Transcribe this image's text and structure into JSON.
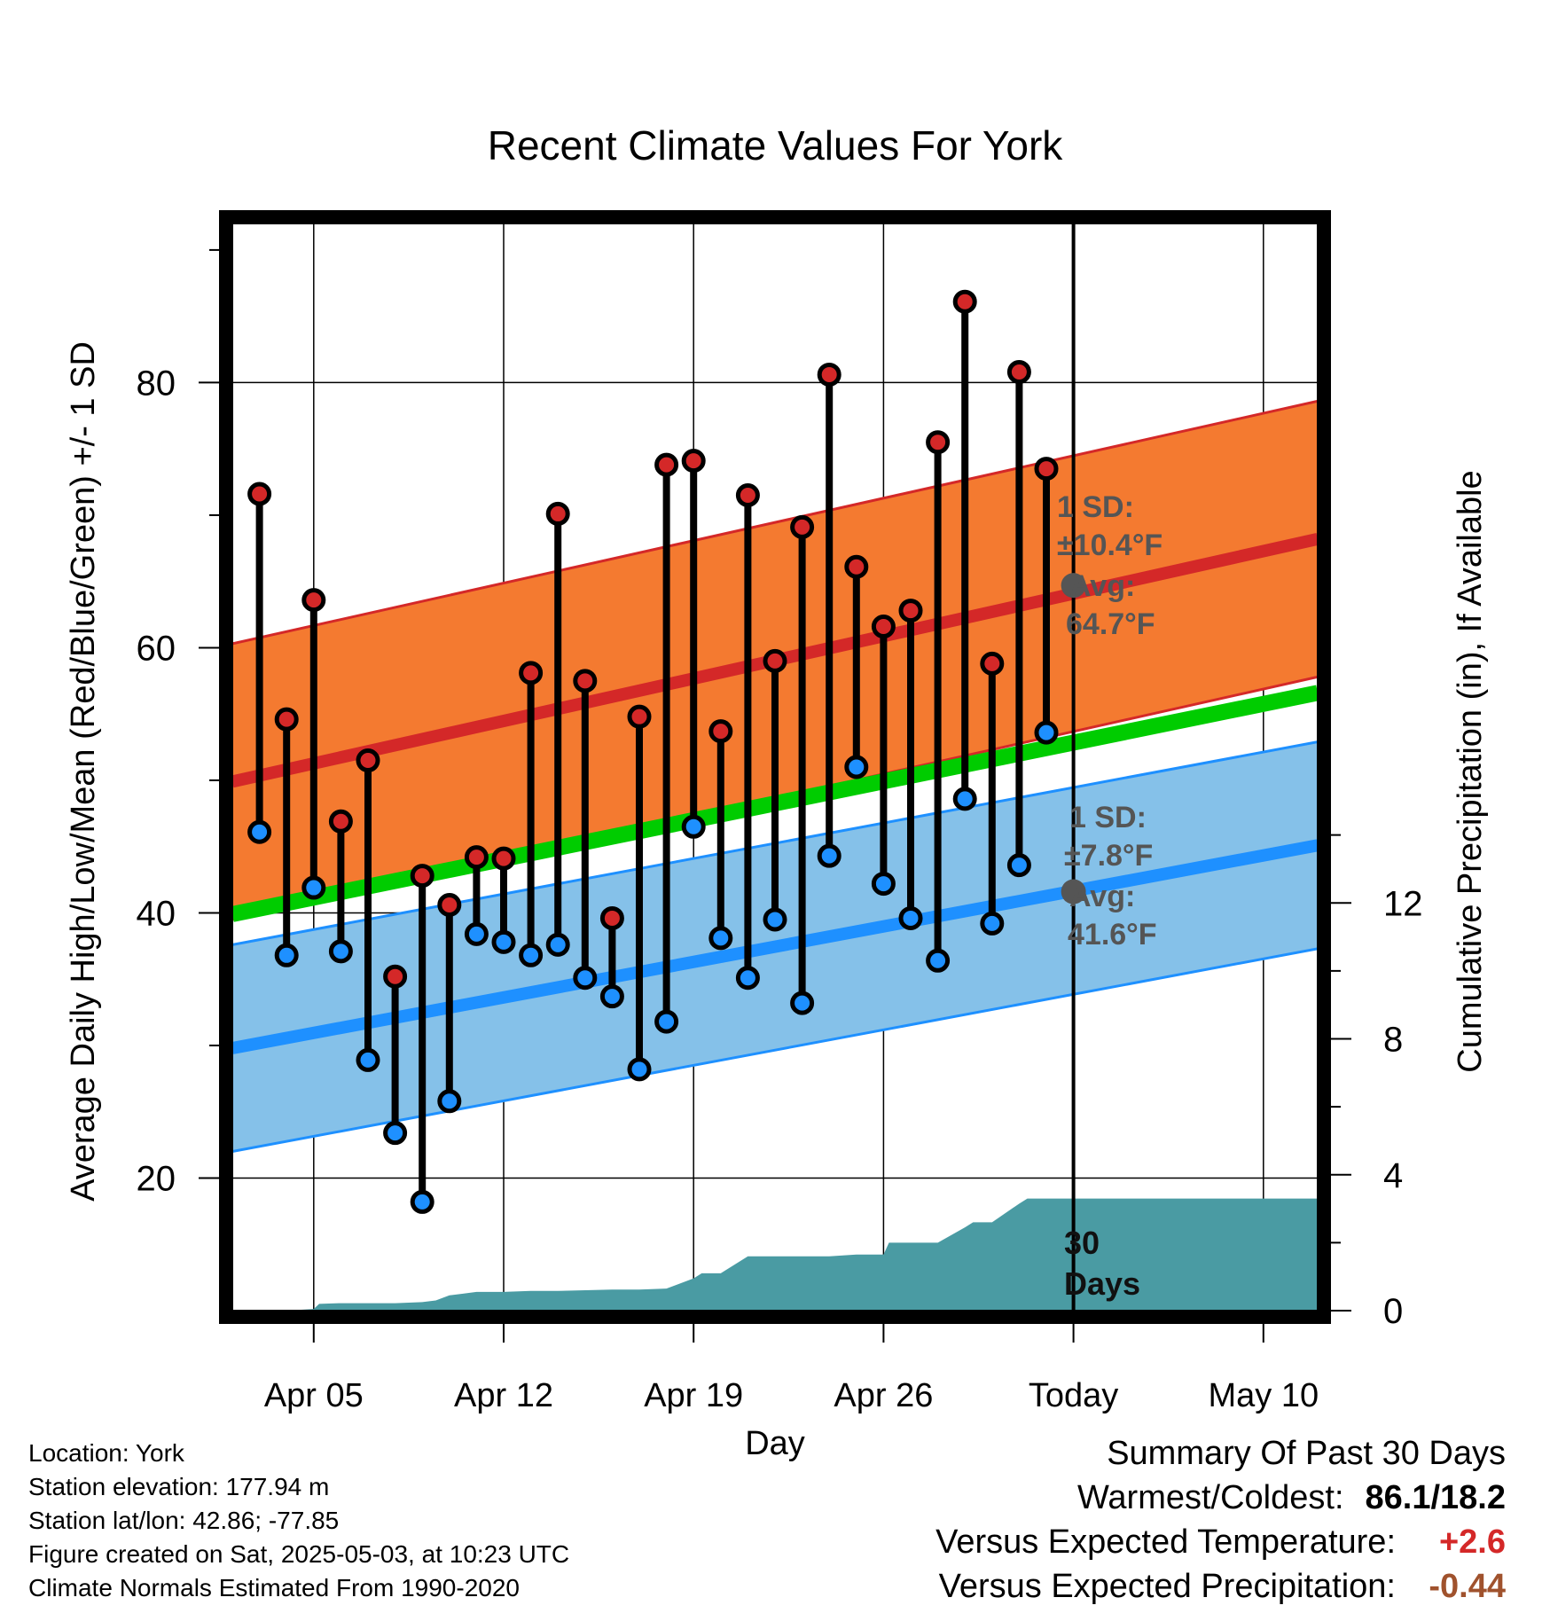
{
  "chart_data": {
    "type": "line",
    "title": "Recent Climate Values For York",
    "xlabel": "Day",
    "ylabel": "Average Daily High/Low/Mean (Red/Blue/Green) +/- 1 SD",
    "y2label": "Cumulative Precipitation (in), If Available",
    "ylim": [
      10,
      92
    ],
    "y2lim": [
      0,
      32
    ],
    "x_ticks": [
      {
        "day": 5,
        "label": "Apr 05"
      },
      {
        "day": 12,
        "label": "Apr 12"
      },
      {
        "day": 19,
        "label": "Apr 19"
      },
      {
        "day": 26,
        "label": "Apr 26"
      },
      {
        "day": 33,
        "label": "Today"
      },
      {
        "day": 40,
        "label": "May 10"
      }
    ],
    "xlim": [
      2,
      42
    ],
    "y_ticks": [
      "20",
      "40",
      "60",
      "80"
    ],
    "y_tick_values": [
      20,
      40,
      60,
      80
    ],
    "y2_ticks": [
      "0",
      "4",
      "8",
      "12"
    ],
    "y2_tick_values": [
      0,
      4,
      8,
      12
    ],
    "today_day": 33,
    "daily": {
      "day": [
        3,
        4,
        5,
        6,
        7,
        8,
        9,
        10,
        11,
        12,
        13,
        14,
        15,
        16,
        17,
        18,
        19,
        20,
        21,
        22,
        23,
        24,
        25,
        26,
        27,
        28,
        29,
        30,
        31,
        32
      ],
      "high": [
        71.6,
        54.6,
        63.6,
        46.9,
        51.5,
        35.2,
        42.8,
        40.6,
        44.2,
        44.1,
        58.1,
        70.1,
        57.5,
        39.6,
        54.8,
        73.8,
        74.1,
        53.7,
        71.5,
        59.0,
        69.1,
        80.6,
        66.1,
        61.6,
        62.8,
        75.5,
        86.1,
        58.8,
        80.8,
        73.5
      ],
      "low": [
        46.1,
        36.8,
        41.9,
        37.1,
        28.9,
        23.4,
        18.2,
        25.8,
        38.4,
        37.8,
        36.8,
        37.6,
        35.1,
        33.7,
        28.2,
        31.8,
        46.5,
        38.1,
        35.1,
        39.5,
        33.2,
        44.3,
        51.0,
        42.2,
        39.6,
        36.4,
        48.6,
        39.2,
        43.6,
        53.6
      ]
    },
    "normals": {
      "start_day": 2,
      "end_day": 42,
      "high_avg": [
        49.9,
        68.2
      ],
      "high_sd": 10.4,
      "low_avg": [
        29.8,
        45.1
      ],
      "low_sd": 7.8,
      "mean_avg": [
        39.9,
        56.6
      ]
    },
    "annotations": {
      "high_sd_label": "1 SD:",
      "high_sd_value": "±10.4°F",
      "high_avg_label": "Avg:",
      "high_avg_value": "64.7°F",
      "high_avg": 64.7,
      "low_sd_label": "1 SD:",
      "low_sd_value": "±7.8°F",
      "low_avg_label": "Avg:",
      "low_avg_value": "41.6°F",
      "low_avg": 41.6,
      "precip_period": "30",
      "precip_period_unit": "Days"
    },
    "precip": {
      "day": [
        4,
        5,
        5.2,
        6,
        8,
        9,
        9.5,
        10,
        10.5,
        11,
        12,
        13,
        14,
        16,
        17,
        18,
        19,
        19.3,
        20,
        21,
        22,
        23,
        24,
        25,
        26,
        26.2,
        27,
        28,
        29,
        29.3,
        30,
        31,
        31.3,
        32,
        33,
        42
      ],
      "cum": [
        0.0,
        0.05,
        0.2,
        0.22,
        0.22,
        0.25,
        0.3,
        0.45,
        0.5,
        0.55,
        0.55,
        0.58,
        0.58,
        0.62,
        0.62,
        0.65,
        0.95,
        1.1,
        1.1,
        1.6,
        1.6,
        1.6,
        1.6,
        1.65,
        1.65,
        2.0,
        2.0,
        2.0,
        2.45,
        2.6,
        2.6,
        3.15,
        3.3,
        3.3,
        3.3,
        3.3
      ]
    },
    "colors": {
      "high_band": "#f47a30",
      "high_line": "#d42828",
      "low_band": "#85c1e9",
      "low_line": "#1e90ff",
      "mean_line": "#00cc00",
      "precip": "#4a9ba3",
      "high_dot": "#d42828",
      "low_dot": "#1e90ff",
      "annotation": "#555555"
    }
  },
  "footer": {
    "location": "Location: York",
    "elevation": "Station elevation: 177.94 m",
    "latlon": "Station lat/lon: 42.86; -77.85",
    "created": "Figure created on Sat, 2025-05-03, at 10:23 UTC",
    "normals": "Climate Normals Estimated From 1990-2020"
  },
  "summary": {
    "title": "Summary Of Past 30 Days",
    "warm_cold_label": "Warmest/Coldest:",
    "warm_cold_value": "86.1/18.2",
    "temp_label": "Versus Expected Temperature:",
    "temp_value": "+2.6",
    "temp_color": "#d42828",
    "precip_label": "Versus Expected Precipitation:",
    "precip_value": "-0.44",
    "precip_color": "#a0522d"
  }
}
